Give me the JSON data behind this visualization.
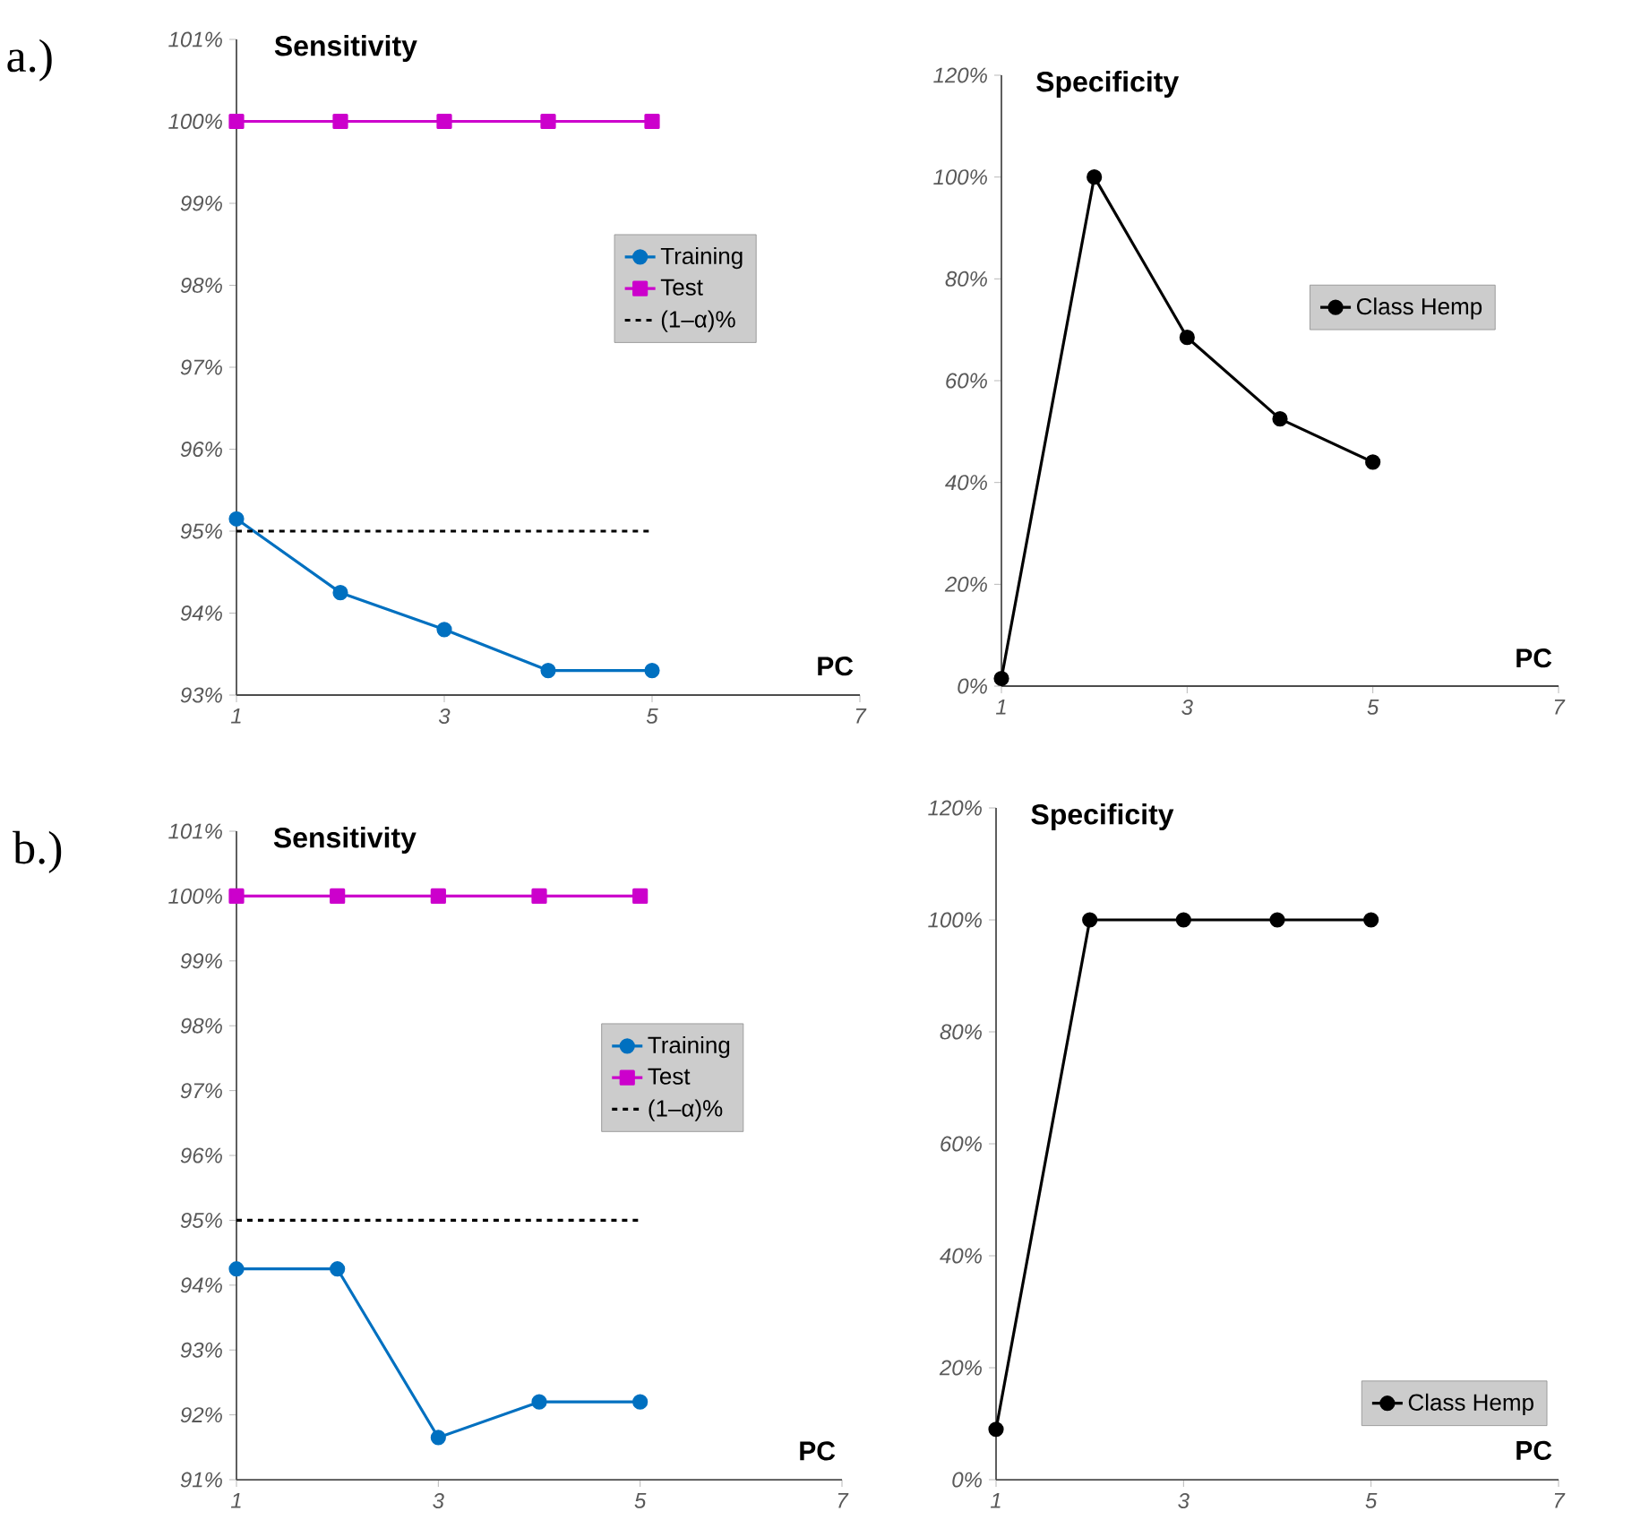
{
  "chart_data": [
    {
      "type": "line",
      "title": "Sensitivity",
      "xlabel": "PC",
      "annotations": [
        "a.)"
      ],
      "x": [
        1,
        2,
        3,
        4,
        5
      ],
      "xlim": [
        1,
        7
      ],
      "xticks": [
        1,
        3,
        5,
        7
      ],
      "ylim": [
        93,
        101
      ],
      "yticks": [
        {
          "value": 93,
          "label": "93%"
        },
        {
          "value": 94,
          "label": "94%"
        },
        {
          "value": 95,
          "label": "95%"
        },
        {
          "value": 96,
          "label": "96%"
        },
        {
          "value": 97,
          "label": "97%"
        },
        {
          "value": 98,
          "label": "98%"
        },
        {
          "value": 99,
          "label": "99%"
        },
        {
          "value": 100,
          "label": "100%"
        },
        {
          "value": 101,
          "label": "101%"
        }
      ],
      "series": [
        {
          "name": "Training",
          "color": "#0070c0",
          "marker": "circle",
          "values": [
            95.15,
            94.25,
            93.8,
            93.3,
            93.3
          ]
        },
        {
          "name": "Test",
          "color": "#cc00cc",
          "marker": "square",
          "values": [
            100,
            100,
            100,
            100,
            100
          ]
        }
      ],
      "ref_lines": [
        {
          "axis": "y",
          "value": 95,
          "label": "(1–α)%",
          "color": "#000000",
          "line_style": "dashed"
        }
      ],
      "legend": "center right"
    },
    {
      "type": "line",
      "title": "Specificity",
      "xlabel": "PC",
      "x": [
        1,
        2,
        3,
        4,
        5
      ],
      "xlim": [
        1,
        7
      ],
      "xticks": [
        1,
        3,
        5,
        7
      ],
      "ylim": [
        0,
        120
      ],
      "yticks": [
        {
          "value": 0,
          "label": "0%"
        },
        {
          "value": 20,
          "label": "20%"
        },
        {
          "value": 40,
          "label": "40%"
        },
        {
          "value": 60,
          "label": "60%"
        },
        {
          "value": 80,
          "label": "80%"
        },
        {
          "value": 100,
          "label": "100%"
        },
        {
          "value": 120,
          "label": "120%"
        }
      ],
      "series": [
        {
          "name": "Class Hemp",
          "color": "#000000",
          "marker": "circle",
          "values": [
            1.5,
            100,
            68.5,
            52.5,
            44
          ]
        }
      ],
      "legend": "center right"
    },
    {
      "type": "line",
      "title": "Sensitivity",
      "xlabel": "PC",
      "annotations": [
        "b.)"
      ],
      "x": [
        1,
        2,
        3,
        4,
        5
      ],
      "xlim": [
        1,
        7
      ],
      "xticks": [
        1,
        3,
        5,
        7
      ],
      "ylim": [
        91,
        101
      ],
      "yticks": [
        {
          "value": 91,
          "label": "91%"
        },
        {
          "value": 92,
          "label": "92%"
        },
        {
          "value": 93,
          "label": "93%"
        },
        {
          "value": 94,
          "label": "94%"
        },
        {
          "value": 95,
          "label": "95%"
        },
        {
          "value": 96,
          "label": "96%"
        },
        {
          "value": 97,
          "label": "97%"
        },
        {
          "value": 98,
          "label": "98%"
        },
        {
          "value": 99,
          "label": "99%"
        },
        {
          "value": 100,
          "label": "100%"
        },
        {
          "value": 101,
          "label": "101%"
        }
      ],
      "series": [
        {
          "name": "Training",
          "color": "#0070c0",
          "marker": "circle",
          "values": [
            94.25,
            94.25,
            91.65,
            92.2,
            92.2
          ]
        },
        {
          "name": "Test",
          "color": "#cc00cc",
          "marker": "square",
          "values": [
            100,
            100,
            100,
            100,
            100
          ]
        }
      ],
      "ref_lines": [
        {
          "axis": "y",
          "value": 95,
          "label": "(1–α)%",
          "color": "#000000",
          "line_style": "dashed"
        }
      ],
      "legend": "center right"
    },
    {
      "type": "line",
      "title": "Specificity",
      "xlabel": "PC",
      "x": [
        1,
        2,
        3,
        4,
        5
      ],
      "xlim": [
        1,
        7
      ],
      "xticks": [
        1,
        3,
        5,
        7
      ],
      "ylim": [
        0,
        120
      ],
      "yticks": [
        {
          "value": 0,
          "label": "0%"
        },
        {
          "value": 20,
          "label": "20%"
        },
        {
          "value": 40,
          "label": "40%"
        },
        {
          "value": 60,
          "label": "60%"
        },
        {
          "value": 80,
          "label": "80%"
        },
        {
          "value": 100,
          "label": "100%"
        },
        {
          "value": 120,
          "label": "120%"
        }
      ],
      "series": [
        {
          "name": "Class Hemp",
          "color": "#000000",
          "marker": "circle",
          "values": [
            9,
            100,
            100,
            100,
            100
          ]
        }
      ],
      "legend": "bottom right"
    }
  ]
}
